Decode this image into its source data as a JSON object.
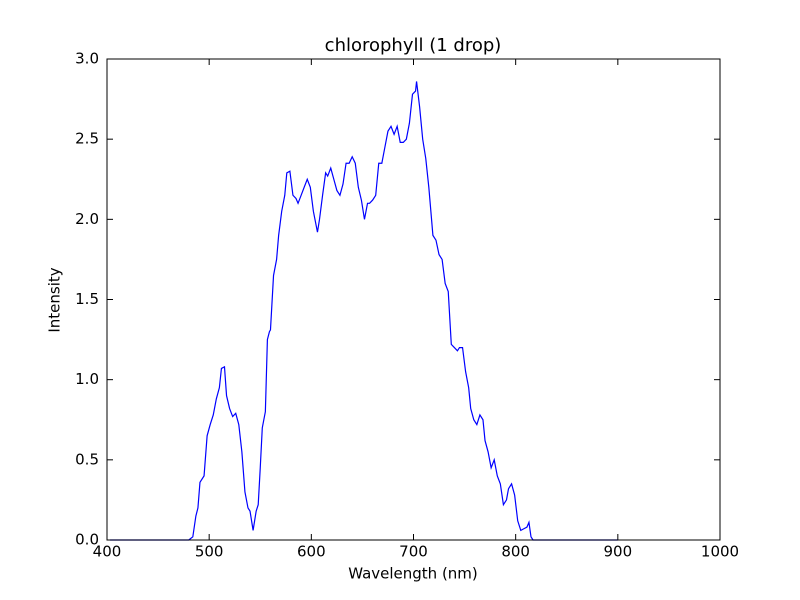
{
  "chart_data": {
    "type": "line",
    "title": "chlorophyll (1 drop)",
    "x_label": "Wavelength (nm)",
    "y_label": "Intensity",
    "x": [
      403,
      480,
      484,
      487,
      489,
      491,
      495,
      498,
      501,
      504,
      507,
      510,
      512,
      515,
      517,
      520,
      523,
      526,
      529,
      532,
      535,
      538,
      540,
      543,
      546,
      548,
      550,
      552,
      555,
      557,
      559,
      560,
      563,
      566,
      568,
      571,
      574,
      576,
      579,
      582,
      585,
      587,
      590,
      593,
      596,
      599,
      602,
      606,
      608,
      611,
      614,
      616,
      619,
      622,
      625,
      628,
      631,
      634,
      637,
      640,
      643,
      646,
      649,
      652,
      655,
      657,
      660,
      663,
      666,
      669,
      672,
      675,
      678,
      681,
      684,
      687,
      690,
      693,
      696,
      699,
      702,
      703,
      706,
      709,
      712,
      715,
      717,
      719,
      722,
      725,
      728,
      731,
      734,
      737,
      740,
      743,
      745,
      748,
      751,
      754,
      756,
      759,
      762,
      765,
      768,
      770,
      773,
      776,
      779,
      782,
      785,
      788,
      791,
      793,
      796,
      799,
      802,
      805,
      808,
      811,
      813,
      815,
      817,
      900
    ],
    "values": [
      0,
      0,
      0.02,
      0.15,
      0.2,
      0.36,
      0.4,
      0.65,
      0.72,
      0.78,
      0.88,
      0.95,
      1.07,
      1.08,
      0.9,
      0.82,
      0.77,
      0.79,
      0.72,
      0.55,
      0.3,
      0.2,
      0.18,
      0.06,
      0.18,
      0.22,
      0.45,
      0.7,
      0.8,
      1.25,
      1.3,
      1.31,
      1.65,
      1.75,
      1.9,
      2.05,
      2.15,
      2.29,
      2.3,
      2.15,
      2.13,
      2.1,
      2.15,
      2.2,
      2.25,
      2.2,
      2.05,
      1.92,
      2.0,
      2.15,
      2.29,
      2.27,
      2.32,
      2.25,
      2.18,
      2.15,
      2.22,
      2.35,
      2.35,
      2.39,
      2.35,
      2.2,
      2.12,
      2.0,
      2.1,
      2.1,
      2.12,
      2.15,
      2.35,
      2.35,
      2.45,
      2.55,
      2.58,
      2.53,
      2.58,
      2.48,
      2.48,
      2.5,
      2.6,
      2.78,
      2.8,
      2.86,
      2.7,
      2.5,
      2.38,
      2.2,
      2.05,
      1.9,
      1.87,
      1.78,
      1.75,
      1.6,
      1.55,
      1.22,
      1.2,
      1.18,
      1.2,
      1.2,
      1.05,
      0.95,
      0.82,
      0.75,
      0.72,
      0.78,
      0.75,
      0.62,
      0.55,
      0.45,
      0.5,
      0.4,
      0.35,
      0.22,
      0.25,
      0.32,
      0.35,
      0.28,
      0.12,
      0.06,
      0.07,
      0.08,
      0.11,
      0.02,
      0,
      0
    ],
    "color": "#0000ff",
    "xlim": [
      400,
      1000
    ],
    "xticks": [
      400,
      500,
      600,
      700,
      800,
      900,
      1000
    ],
    "ylim": [
      0,
      3
    ],
    "yticks": [
      {
        "value": 0,
        "label": "0.0"
      },
      0.5,
      {
        "value": 1,
        "label": "1.0"
      },
      1.5,
      {
        "value": 2,
        "label": "2.0"
      },
      2.5,
      {
        "value": 3,
        "label": "3.0"
      }
    ]
  }
}
